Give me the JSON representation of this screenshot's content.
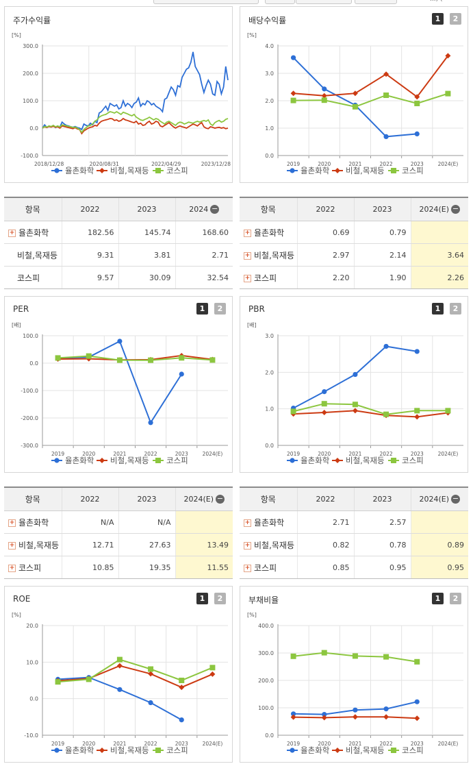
{
  "top_bar": {
    "cut_text": "...)  ("
  },
  "toggle_labels": [
    "1",
    "2"
  ],
  "colors": {
    "company": "#2d6fd6",
    "industry": "#cc3a12",
    "kospi": "#8cc63f",
    "highlight": "#fef8d0",
    "grid": "#e3e3e3"
  },
  "legend": [
    "율촌화학",
    "비철,목재등",
    "코스피"
  ],
  "panels": {
    "stock": {
      "title": "주가수익률"
    },
    "dividend": {
      "title": "배당수익률"
    },
    "per": {
      "title": "PER"
    },
    "pbr": {
      "title": "PBR"
    },
    "roe": {
      "title": "ROE"
    },
    "debt": {
      "title": "부채비율"
    }
  },
  "tables": {
    "stock": {
      "headers": [
        "항목",
        "2022",
        "2023",
        "2024"
      ],
      "highlight_last": false,
      "rows": [
        {
          "name": "율촌화학",
          "plus": true,
          "values": [
            "182.56",
            "145.74",
            "168.60"
          ]
        },
        {
          "name": "비철,목재등",
          "plus": false,
          "values": [
            "9.31",
            "3.81",
            "2.71"
          ]
        },
        {
          "name": "코스피",
          "plus": false,
          "values": [
            "9.57",
            "30.09",
            "32.54"
          ]
        }
      ]
    },
    "dividend": {
      "headers": [
        "항목",
        "2022",
        "2023",
        "2024(E)"
      ],
      "highlight_last": true,
      "rows": [
        {
          "name": "율촌화학",
          "plus": true,
          "values": [
            "0.69",
            "0.79",
            ""
          ]
        },
        {
          "name": "비철,목재등",
          "plus": true,
          "values": [
            "2.97",
            "2.14",
            "3.64"
          ]
        },
        {
          "name": "코스피",
          "plus": true,
          "values": [
            "2.20",
            "1.90",
            "2.26"
          ]
        }
      ]
    },
    "per": {
      "headers": [
        "항목",
        "2022",
        "2023",
        "2024(E)"
      ],
      "highlight_last": true,
      "rows": [
        {
          "name": "율촌화학",
          "plus": true,
          "values": [
            "N/A",
            "N/A",
            ""
          ]
        },
        {
          "name": "비철,목재등",
          "plus": true,
          "values": [
            "12.71",
            "27.63",
            "13.49"
          ]
        },
        {
          "name": "코스피",
          "plus": true,
          "values": [
            "10.85",
            "19.35",
            "11.55"
          ]
        }
      ]
    },
    "pbr": {
      "headers": [
        "항목",
        "2022",
        "2023",
        "2024(E)"
      ],
      "highlight_last": true,
      "rows": [
        {
          "name": "율촌화학",
          "plus": true,
          "values": [
            "2.71",
            "2.57",
            ""
          ]
        },
        {
          "name": "비철,목재등",
          "plus": true,
          "values": [
            "0.82",
            "0.78",
            "0.89"
          ]
        },
        {
          "name": "코스피",
          "plus": true,
          "values": [
            "0.85",
            "0.95",
            "0.95"
          ]
        }
      ]
    }
  },
  "chart_data": [
    {
      "id": "stock",
      "type": "line",
      "title": "주가수익률",
      "unit": "[%]",
      "ylim": [
        -100,
        300
      ],
      "yticks": [
        300,
        200,
        100,
        0,
        -100
      ],
      "ytick_labels": [
        "300.0",
        "200.0",
        "100.0",
        "0.0",
        "-100.0"
      ],
      "xlim": [
        0,
        160
      ],
      "xtick_positions": [
        0,
        40,
        80,
        120,
        160
      ],
      "xtick_labels": [
        "2018/12/28",
        "2020/08/31",
        "2022/04/29",
        "2023/12/28"
      ],
      "x_label_positions": [
        0,
        53.3,
        106.7,
        160
      ],
      "legend_position": "bottom",
      "series": [
        {
          "name": "율촌화학",
          "values": [
            0,
            12,
            3,
            8,
            5,
            10,
            2,
            8,
            4,
            22,
            15,
            10,
            8,
            5,
            3,
            6,
            2,
            0,
            -5,
            15,
            10,
            8,
            18,
            12,
            25,
            20,
            55,
            60,
            70,
            80,
            65,
            90,
            85,
            80,
            85,
            70,
            75,
            100,
            80,
            90,
            85,
            75,
            90,
            95,
            110,
            80,
            90,
            85,
            100,
            95,
            85,
            90,
            80,
            75,
            70,
            60,
            105,
            110,
            130,
            150,
            140,
            120,
            155,
            150,
            185,
            200,
            215,
            220,
            240,
            278,
            225,
            210,
            195,
            160,
            130,
            155,
            175,
            160,
            125,
            120,
            170,
            160,
            125,
            150,
            225,
            175
          ]
        },
        {
          "name": "비철,목재등",
          "values": [
            0,
            5,
            2,
            6,
            4,
            7,
            3,
            5,
            0,
            8,
            6,
            4,
            2,
            0,
            -2,
            2,
            -3,
            -5,
            -20,
            -10,
            -5,
            0,
            3,
            5,
            10,
            8,
            18,
            25,
            28,
            30,
            32,
            35,
            34,
            28,
            30,
            25,
            28,
            35,
            30,
            28,
            25,
            22,
            20,
            25,
            15,
            18,
            10,
            12,
            20,
            25,
            15,
            18,
            25,
            22,
            8,
            5,
            10,
            15,
            20,
            12,
            5,
            0,
            5,
            8,
            5,
            3,
            0,
            5,
            10,
            15,
            12,
            8,
            15,
            20,
            5,
            0,
            -2,
            5,
            3,
            0,
            2,
            3,
            0,
            2,
            -2,
            0
          ]
        },
        {
          "name": "코스피",
          "values": [
            0,
            6,
            4,
            8,
            6,
            10,
            5,
            8,
            4,
            12,
            10,
            8,
            6,
            5,
            2,
            4,
            0,
            -5,
            -15,
            -5,
            2,
            8,
            10,
            15,
            25,
            30,
            40,
            45,
            48,
            50,
            55,
            60,
            58,
            55,
            60,
            55,
            50,
            58,
            55,
            52,
            48,
            45,
            50,
            40,
            35,
            30,
            28,
            32,
            35,
            40,
            35,
            30,
            35,
            32,
            25,
            20,
            15,
            22,
            25,
            20,
            15,
            10,
            18,
            22,
            20,
            15,
            18,
            22,
            20,
            18,
            22,
            25,
            22,
            25,
            28,
            25,
            30,
            15,
            10,
            20,
            25,
            28,
            22,
            25,
            32,
            35
          ]
        }
      ]
    },
    {
      "id": "dividend",
      "type": "line",
      "title": "배당수익률",
      "unit": "[%]",
      "ylim": [
        0,
        4
      ],
      "yticks": [
        4,
        3,
        2,
        1,
        0
      ],
      "ytick_labels": [
        "4.0",
        "3.0",
        "2.0",
        "1.0",
        "0.0"
      ],
      "categories": [
        "2019",
        "2020",
        "2021",
        "2022",
        "2023",
        "2024(E)"
      ],
      "legend_position": "bottom",
      "series": [
        {
          "name": "율촌화학",
          "values": [
            3.57,
            2.43,
            1.84,
            0.69,
            0.79,
            null
          ]
        },
        {
          "name": "비철,목재등",
          "values": [
            2.27,
            2.18,
            2.27,
            2.97,
            2.14,
            3.64
          ]
        },
        {
          "name": "코스피",
          "values": [
            2.01,
            2.02,
            1.78,
            2.2,
            1.9,
            2.26
          ]
        }
      ]
    },
    {
      "id": "per",
      "type": "line",
      "title": "PER",
      "unit": "[배]",
      "ylim": [
        -300,
        100
      ],
      "yticks": [
        100,
        0,
        -100,
        -200,
        -300
      ],
      "ytick_labels": [
        "100.0",
        "0.0",
        "-100.0",
        "-200.0",
        "-300.0"
      ],
      "categories": [
        "2019",
        "2020",
        "2021",
        "2022",
        "2023",
        "2024(E)"
      ],
      "legend_position": "bottom",
      "series": [
        {
          "name": "율촌화학",
          "values": [
            18,
            22,
            80,
            -217,
            -40,
            null
          ]
        },
        {
          "name": "비철,목재등",
          "values": [
            15,
            16,
            12,
            12.71,
            27.63,
            13.49
          ]
        },
        {
          "name": "코스피",
          "values": [
            19,
            26,
            11,
            10.85,
            19.35,
            11.55
          ]
        }
      ]
    },
    {
      "id": "pbr",
      "type": "line",
      "title": "PBR",
      "unit": "[배]",
      "ylim": [
        0,
        3
      ],
      "yticks": [
        3,
        2,
        1,
        0
      ],
      "ytick_labels": [
        "3.0",
        "2.0",
        "1.0",
        "0.0"
      ],
      "categories": [
        "2019",
        "2020",
        "2021",
        "2022",
        "2023",
        "2024(E)"
      ],
      "legend_position": "bottom",
      "series": [
        {
          "name": "율촌화학",
          "values": [
            1.02,
            1.47,
            1.94,
            2.71,
            2.57,
            null
          ]
        },
        {
          "name": "비철,목재등",
          "values": [
            0.86,
            0.9,
            0.95,
            0.82,
            0.78,
            0.89
          ]
        },
        {
          "name": "코스피",
          "values": [
            0.93,
            1.14,
            1.12,
            0.85,
            0.95,
            0.95
          ]
        }
      ]
    },
    {
      "id": "roe",
      "type": "line",
      "title": "ROE",
      "unit": "[%]",
      "ylim": [
        -10,
        20
      ],
      "yticks": [
        20,
        10,
        0,
        -10
      ],
      "ytick_labels": [
        "20.0",
        "10.0",
        "0.0",
        "-10.0"
      ],
      "categories": [
        "2019",
        "2020",
        "2021",
        "2022",
        "2023",
        "2024(E)"
      ],
      "legend_position": "bottom",
      "series": [
        {
          "name": "율촌화학",
          "values": [
            5.3,
            5.8,
            2.5,
            -1.1,
            -5.8,
            null
          ]
        },
        {
          "name": "비철,목재등",
          "values": [
            4.9,
            5.5,
            9.0,
            6.8,
            3.1,
            6.7
          ]
        },
        {
          "name": "코스피",
          "values": [
            4.6,
            5.3,
            10.7,
            8.1,
            5.0,
            8.5
          ]
        }
      ]
    },
    {
      "id": "debt",
      "type": "line",
      "title": "부채비율",
      "unit": "[%]",
      "ylim": [
        0,
        400
      ],
      "yticks": [
        400,
        300,
        200,
        100,
        0
      ],
      "ytick_labels": [
        "400.0",
        "300.0",
        "200.0",
        "100.0",
        "0.0"
      ],
      "categories": [
        "2019",
        "2020",
        "2021",
        "2022",
        "2023",
        "2024(E)"
      ],
      "legend_position": "bottom",
      "series": [
        {
          "name": "율촌화학",
          "values": [
            78,
            76,
            92,
            96,
            122,
            null
          ]
        },
        {
          "name": "비철,목재등",
          "values": [
            66,
            64,
            67,
            67,
            62,
            null
          ]
        },
        {
          "name": "코스피",
          "values": [
            288,
            301,
            289,
            286,
            268,
            null
          ]
        }
      ]
    }
  ]
}
